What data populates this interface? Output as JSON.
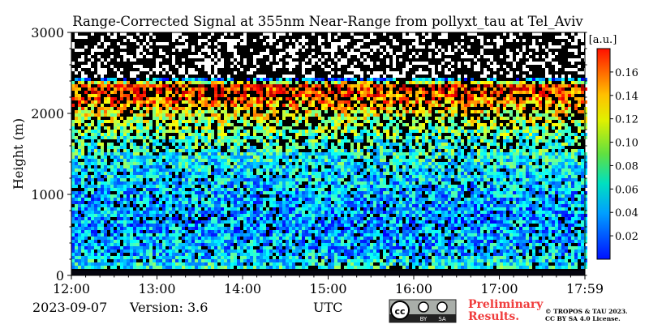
{
  "chart_data": {
    "type": "heatmap",
    "title": "Range-Corrected Signal at 355nm Near-Range from pollyxt_tau at Tel_Aviv",
    "ylabel": "Height (m)",
    "xlabel": "UTC",
    "x_ticks": [
      "12:00",
      "13:00",
      "14:00",
      "15:00",
      "16:00",
      "17:00",
      "17:59"
    ],
    "y_ticks": [
      "0",
      "1000",
      "2000",
      "3000"
    ],
    "ylim": [
      0,
      3000
    ],
    "colorbar": {
      "unit": "[a.u.]",
      "ticks": [
        "0.02",
        "0.04",
        "0.06",
        "0.08",
        "0.10",
        "0.12",
        "0.14",
        "0.16"
      ],
      "range": [
        0.0,
        0.18
      ],
      "colormap": "jet"
    },
    "profile": [
      {
        "height": 0,
        "value": 0.0
      },
      {
        "height": 60,
        "value": 0.0
      },
      {
        "height": 100,
        "value": 0.07
      },
      {
        "height": 300,
        "value": 0.055
      },
      {
        "height": 700,
        "value": 0.05
      },
      {
        "height": 1200,
        "value": 0.06
      },
      {
        "height": 1700,
        "value": 0.08
      },
      {
        "height": 2000,
        "value": 0.11
      },
      {
        "height": 2200,
        "value": 0.14
      },
      {
        "height": 2350,
        "value": 0.15
      },
      {
        "height": 2450,
        "value": 0.0
      },
      {
        "height": 3000,
        "value": 0.0
      }
    ]
  },
  "footer": {
    "date": "2023-09-07",
    "version": "Version: 3.6",
    "xlabel": "UTC",
    "preliminary_line1": "Preliminary",
    "preliminary_line2": "Results.",
    "copyright_line1": "© TROPOS & TAU 2023.",
    "copyright_line2": "CC BY SA 4.0 License.",
    "badge_by": "BY",
    "badge_sa": "SA"
  },
  "colors": {
    "preliminary": "#f03c3c",
    "background_signal": "#000000"
  }
}
